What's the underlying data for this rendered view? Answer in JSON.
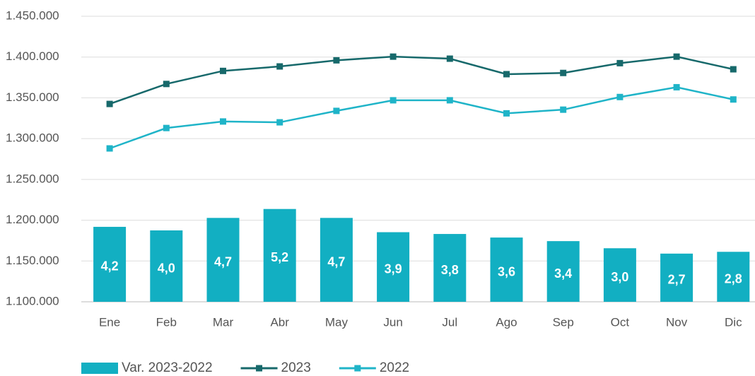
{
  "chart_data": {
    "type": "bar_line",
    "categories": [
      "Ene",
      "Feb",
      "Mar",
      "Abr",
      "May",
      "Jun",
      "Jul",
      "Ago",
      "Sep",
      "Oct",
      "Nov",
      "Dic"
    ],
    "series": [
      {
        "name": "Var. 2023-2022",
        "type": "bar",
        "axis": "y2",
        "color": "#12afc2",
        "values": [
          4.2,
          4.0,
          4.7,
          5.2,
          4.7,
          3.9,
          3.8,
          3.6,
          3.4,
          3.0,
          2.7,
          2.8
        ],
        "value_labels": [
          "4,2",
          "4,0",
          "4,7",
          "5,2",
          "4,7",
          "3,9",
          "3,8",
          "3,6",
          "3,4",
          "3,0",
          "2,7",
          "2,8"
        ]
      },
      {
        "name": "2023",
        "type": "line",
        "color": "#17696b",
        "values": [
          1342500,
          1367000,
          1383000,
          1388500,
          1396000,
          1400500,
          1398000,
          1379000,
          1380500,
          1392500,
          1400500,
          1385000
        ]
      },
      {
        "name": "2022",
        "type": "line",
        "color": "#1fb4c8",
        "values": [
          1288000,
          1313000,
          1321000,
          1320000,
          1334000,
          1347000,
          1347000,
          1331000,
          1335500,
          1351000,
          1363000,
          1348000
        ]
      }
    ],
    "ylim": [
      1100000,
      1450000
    ],
    "yticks": [
      {
        "value": 1100000,
        "label": "1.100.000"
      },
      {
        "value": 1150000,
        "label": "1.150.000"
      },
      {
        "value": 1200000,
        "label": "1.200.000"
      },
      {
        "value": 1250000,
        "label": "1.250.000"
      },
      {
        "value": 1300000,
        "label": "1.300.000"
      },
      {
        "value": 1350000,
        "label": "1.350.000"
      },
      {
        "value": 1400000,
        "label": "1.400.000"
      },
      {
        "value": 1450000,
        "label": "1.450.000"
      }
    ],
    "y2lim": [
      0,
      16
    ],
    "grid": true,
    "legend": "bottom-left"
  }
}
